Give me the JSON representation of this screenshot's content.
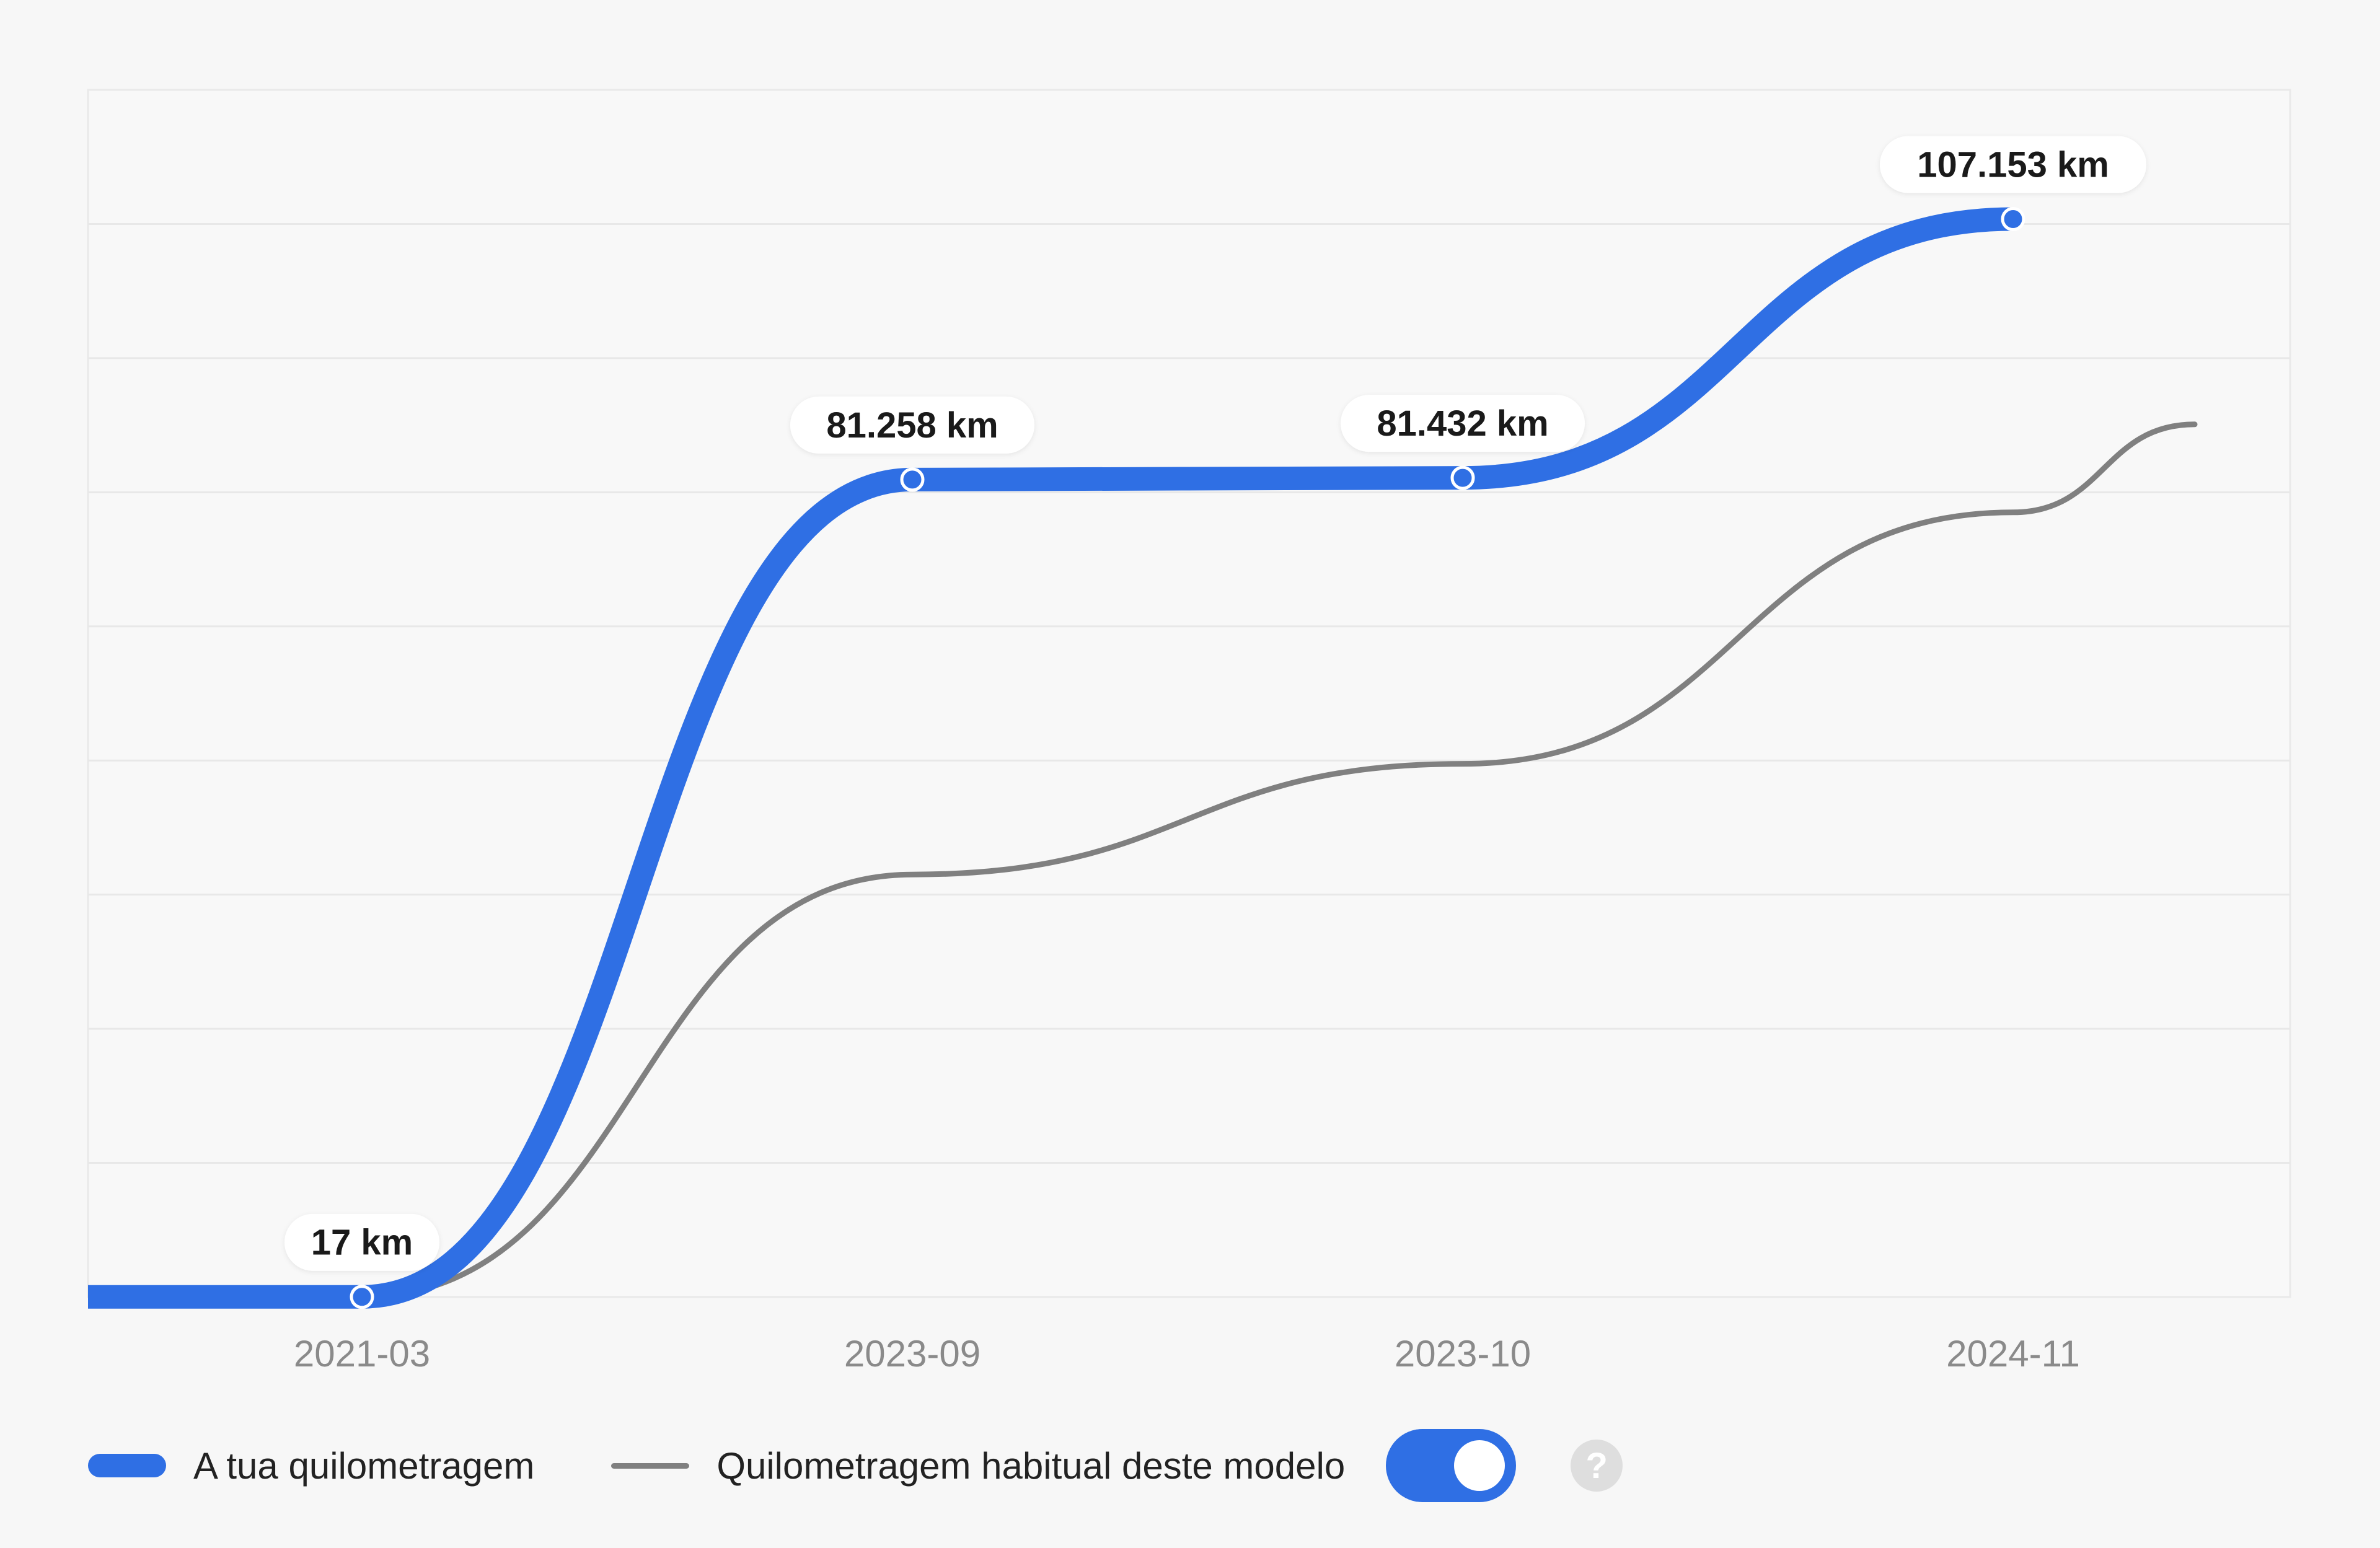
{
  "chart_data": {
    "type": "line",
    "title": "",
    "xlabel": "",
    "ylabel": "",
    "categories": [
      "2021-03",
      "2023-09",
      "2023-10",
      "2024-11"
    ],
    "ylim": [
      0,
      120000
    ],
    "grid": true,
    "series": [
      {
        "name": "A tua quilometragem",
        "color": "#2f6fe4",
        "values": [
          17,
          81258,
          81432,
          107153
        ],
        "labels": [
          "17 km",
          "81.258 km",
          "81.432 km",
          "107.153 km"
        ]
      },
      {
        "name": "Quilometragem habitual deste modelo",
        "color": "#808080",
        "values": [
          17,
          42000,
          53000,
          78000
        ]
      }
    ]
  },
  "legend": {
    "user_label": "A tua quilometragem",
    "typical_label": "Quilometragem habitual deste modelo",
    "toggle_on": true,
    "help_glyph": "?"
  }
}
